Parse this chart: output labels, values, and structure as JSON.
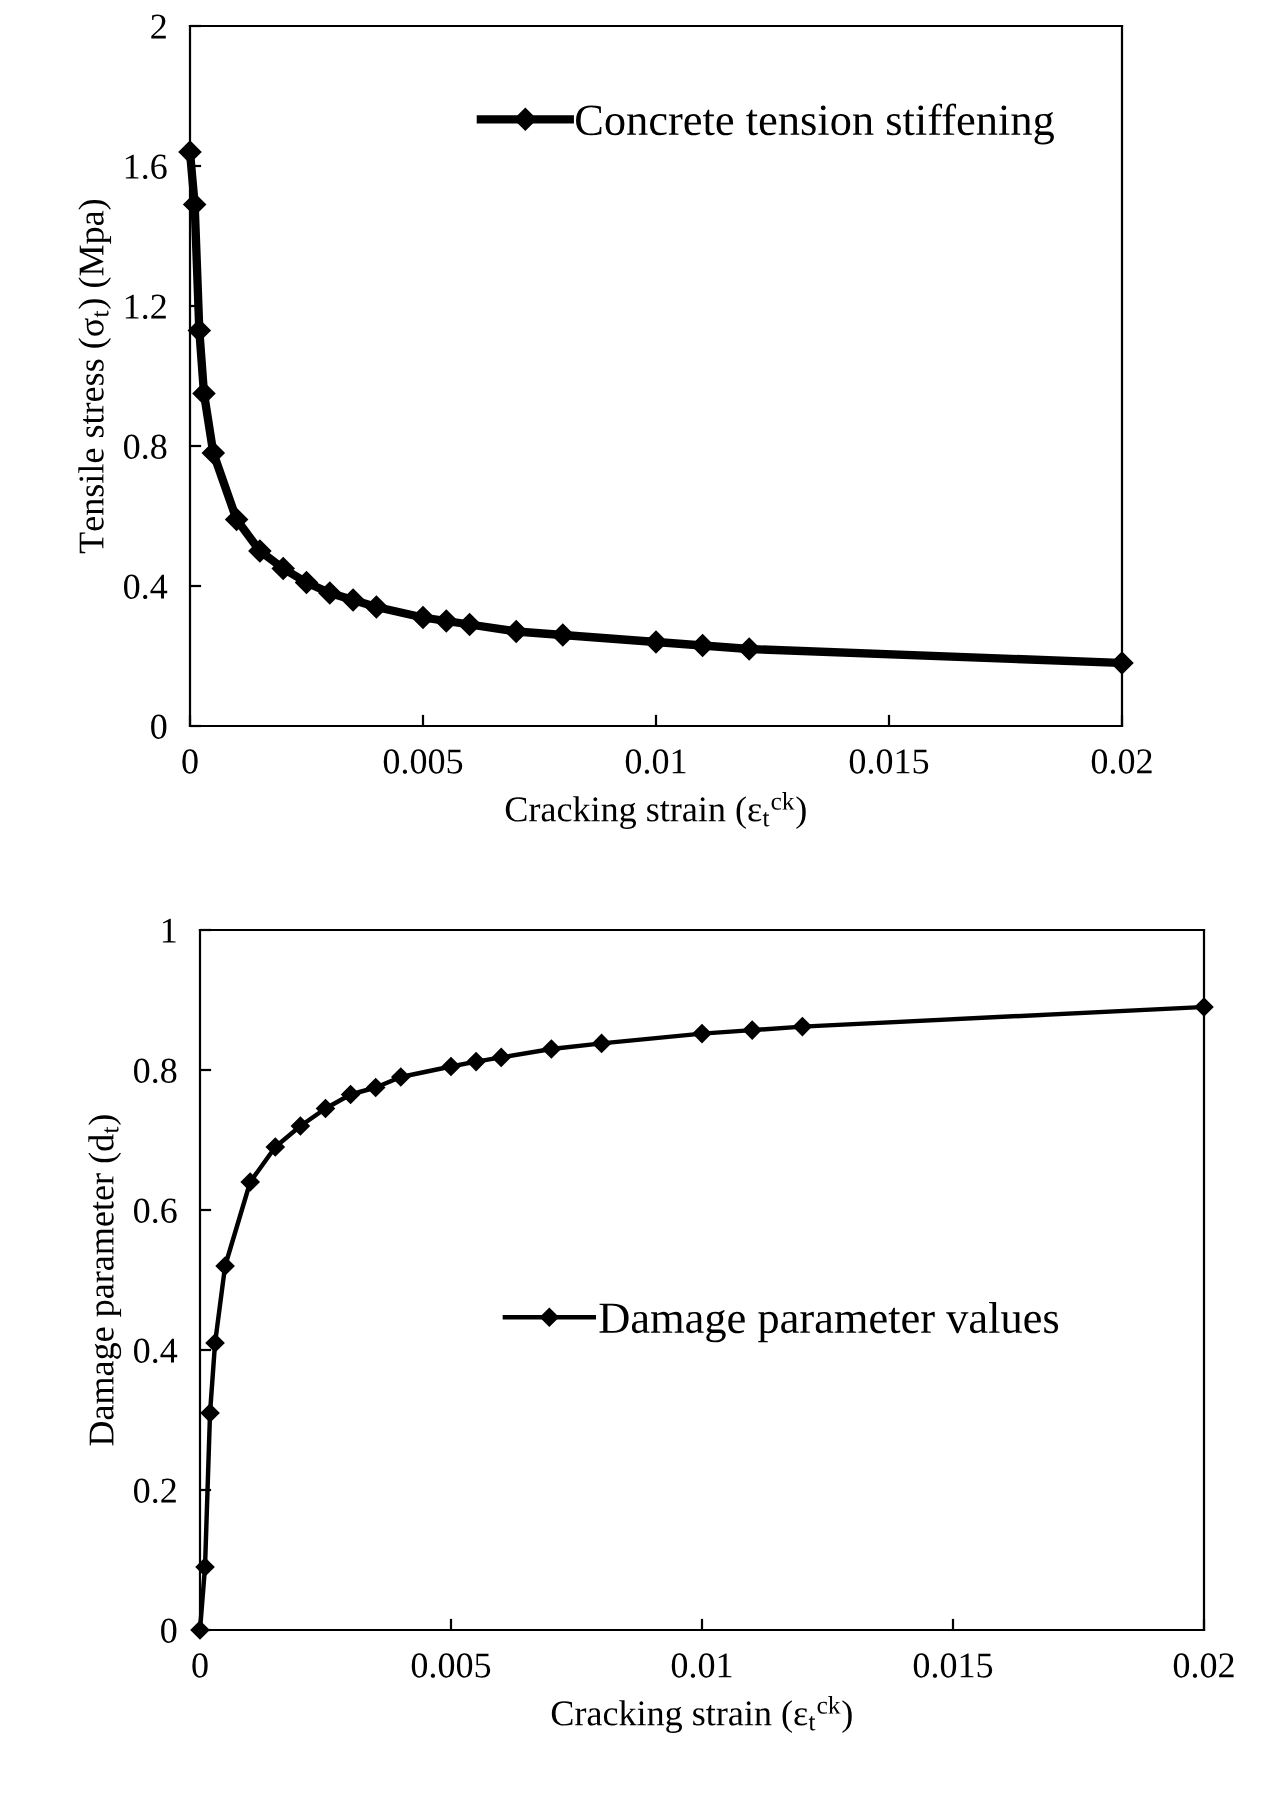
{
  "chart_data": [
    {
      "type": "line",
      "xlabel": "Cracking strain (ε$_{t}$$^{ck}$)",
      "ylabel": "Tensile stress (σ$_{t}$) (Mpa)",
      "x": [
        0,
        0.0001,
        0.0002,
        0.0003,
        0.0005,
        0.001,
        0.0015,
        0.002,
        0.0025,
        0.003,
        0.0035,
        0.004,
        0.005,
        0.0055,
        0.006,
        0.007,
        0.008,
        0.01,
        0.011,
        0.012,
        0.02
      ],
      "series": [
        {
          "name": "Concrete tension stiffening",
          "color": "#000000",
          "values": [
            1.64,
            1.49,
            1.13,
            0.95,
            0.78,
            0.59,
            0.5,
            0.45,
            0.41,
            0.38,
            0.36,
            0.34,
            0.31,
            0.3,
            0.29,
            0.27,
            0.26,
            0.24,
            0.23,
            0.22,
            0.18
          ]
        }
      ],
      "xlim": [
        0,
        0.02
      ],
      "xticks": [
        0,
        0.005,
        0.01,
        0.015,
        0.02
      ],
      "ylim": [
        0,
        2
      ],
      "yticks": [
        0,
        0.4,
        0.8,
        1.2,
        1.6,
        2
      ],
      "marker": "diamond",
      "line_style": "solid",
      "legend": "top",
      "grid": false
    },
    {
      "type": "line",
      "xlabel": "Cracking strain (ε$_{t}$$^{ck}$)",
      "ylabel": "Damage parameter (d$_{t}$)",
      "x": [
        0,
        0.0001,
        0.0002,
        0.0003,
        0.0005,
        0.001,
        0.0015,
        0.002,
        0.0025,
        0.003,
        0.0035,
        0.004,
        0.005,
        0.0055,
        0.006,
        0.007,
        0.008,
        0.01,
        0.011,
        0.012,
        0.02
      ],
      "series": [
        {
          "name": "Damage parameter values",
          "color": "#000000",
          "values": [
            0,
            0.09,
            0.31,
            0.41,
            0.52,
            0.64,
            0.69,
            0.72,
            0.745,
            0.765,
            0.775,
            0.79,
            0.805,
            0.812,
            0.818,
            0.83,
            0.838,
            0.852,
            0.857,
            0.862,
            0.89
          ]
        }
      ],
      "xlim": [
        0,
        0.02
      ],
      "xticks": [
        0,
        0.005,
        0.01,
        0.015,
        0.02
      ],
      "ylim": [
        0,
        1
      ],
      "yticks": [
        0,
        0.2,
        0.4,
        0.6,
        0.8,
        1
      ],
      "marker": "diamond",
      "line_style": "solid",
      "legend": "center",
      "grid": false
    }
  ]
}
